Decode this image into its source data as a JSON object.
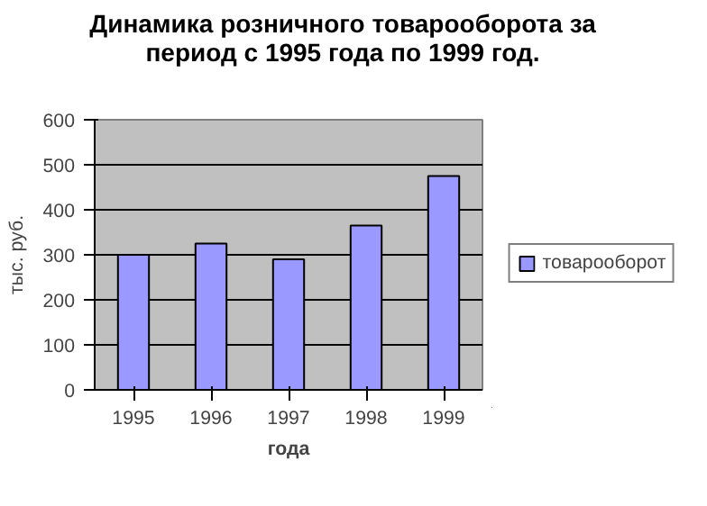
{
  "chart_data": {
    "type": "bar",
    "title": "Динамика розничного товарооборота за период с 1995 года по 1999 год.",
    "xlabel": "года",
    "ylabel": "тыс. руб.",
    "categories": [
      "1995",
      "1996",
      "1997",
      "1998",
      "1999"
    ],
    "series": [
      {
        "name": "товарооборот",
        "color": "#9999ff",
        "values": [
          300,
          325,
          290,
          365,
          475
        ]
      }
    ],
    "ylim": [
      0,
      600
    ],
    "yticks": [
      0,
      100,
      200,
      300,
      400,
      500,
      600
    ],
    "grid": "y",
    "legend": "right"
  }
}
